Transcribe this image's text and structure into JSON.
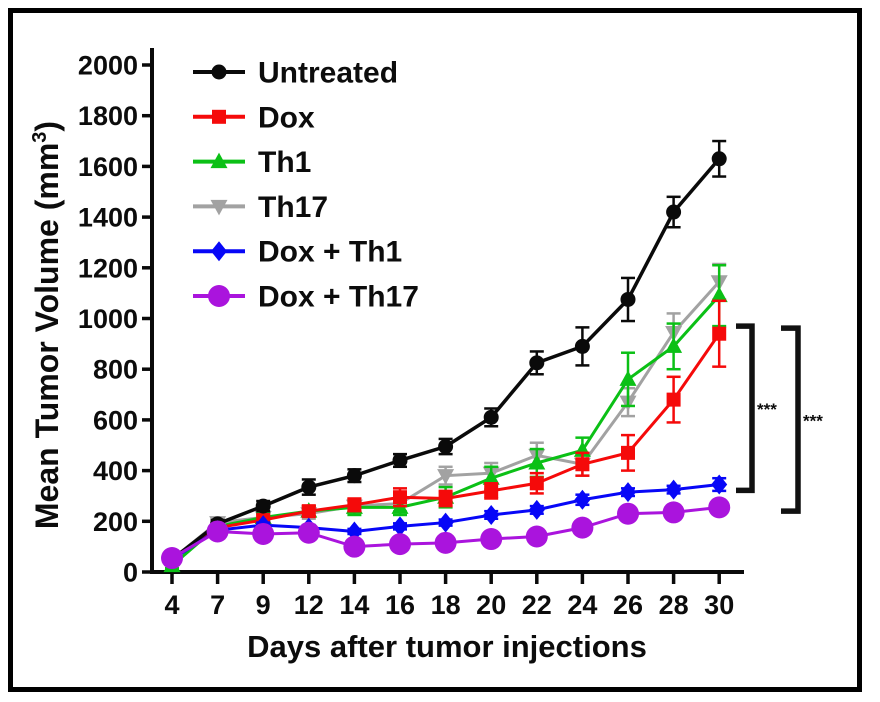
{
  "figure": {
    "background": "#ffffff",
    "border_color": "#000000"
  },
  "chart_data": {
    "type": "line",
    "title": "",
    "xlabel": "Days after tumor injections",
    "ylabel": "Mean Tumor Volume (mm³)",
    "ylabel_parts": {
      "prefix": "Mean Tumor Volume (mm",
      "sup": "3",
      "suffix": ")"
    },
    "x": [
      4,
      7,
      9,
      12,
      14,
      16,
      18,
      20,
      22,
      24,
      26,
      28,
      30
    ],
    "xticklabels": [
      "4",
      "7",
      "9",
      "12",
      "14",
      "16",
      "18",
      "20",
      "22",
      "24",
      "26",
      "28",
      "30"
    ],
    "ylim": [
      0,
      2000
    ],
    "yticks": [
      0,
      200,
      400,
      600,
      800,
      1000,
      1200,
      1400,
      1600,
      1800,
      2000
    ],
    "yticklabels": [
      "0",
      "200",
      "400",
      "600",
      "800",
      "1000",
      "1200",
      "1400",
      "1600",
      "1800",
      "2000"
    ],
    "grid": false,
    "legend_position": "top-left-inside",
    "series": [
      {
        "name": "Untreated",
        "color": "#0a0a0a",
        "marker": "circle",
        "values": [
          50,
          190,
          260,
          335,
          380,
          440,
          495,
          610,
          825,
          890,
          1075,
          1420,
          1630
        ],
        "errors": [
          15,
          15,
          20,
          30,
          25,
          25,
          30,
          35,
          45,
          75,
          85,
          60,
          70
        ]
      },
      {
        "name": "Dox",
        "color": "#f50a0a",
        "marker": "square",
        "values": [
          55,
          175,
          205,
          240,
          265,
          295,
          290,
          320,
          350,
          425,
          470,
          680,
          940
        ],
        "errors": [
          10,
          15,
          15,
          20,
          25,
          35,
          30,
          30,
          40,
          45,
          70,
          90,
          130
        ]
      },
      {
        "name": "Th1",
        "color": "#0bc016",
        "marker": "triangle-up",
        "values": [
          25,
          180,
          215,
          240,
          255,
          255,
          295,
          370,
          430,
          480,
          760,
          890,
          1090
        ],
        "errors": [
          10,
          15,
          15,
          20,
          30,
          30,
          40,
          45,
          55,
          50,
          105,
          90,
          120
        ]
      },
      {
        "name": "Th17",
        "color": "#a2a2a2",
        "marker": "triangle-down",
        "values": [
          50,
          195,
          215,
          230,
          260,
          270,
          380,
          390,
          460,
          425,
          670,
          945,
          1145
        ],
        "errors": [
          10,
          15,
          15,
          20,
          25,
          30,
          35,
          40,
          50,
          45,
          55,
          75,
          70
        ]
      },
      {
        "name": "Dox + Th1",
        "color": "#0707f7",
        "marker": "diamond",
        "values": [
          50,
          165,
          185,
          175,
          160,
          180,
          195,
          225,
          245,
          285,
          315,
          325,
          345
        ],
        "errors": [
          8,
          10,
          10,
          10,
          10,
          12,
          12,
          15,
          15,
          20,
          15,
          15,
          25
        ]
      },
      {
        "name": "Dox + Th17",
        "color": "#aa14dd",
        "marker": "circle-large",
        "values": [
          55,
          160,
          150,
          155,
          100,
          110,
          115,
          130,
          140,
          175,
          230,
          235,
          255
        ],
        "errors": [
          8,
          10,
          10,
          10,
          10,
          10,
          10,
          12,
          12,
          15,
          15,
          15,
          18
        ]
      }
    ],
    "annotations": [
      {
        "type": "bracket",
        "label": "***",
        "top_value": 970,
        "bottom_value": 322
      },
      {
        "type": "bracket",
        "label": "***",
        "top_value": 962,
        "bottom_value": 240
      }
    ]
  }
}
